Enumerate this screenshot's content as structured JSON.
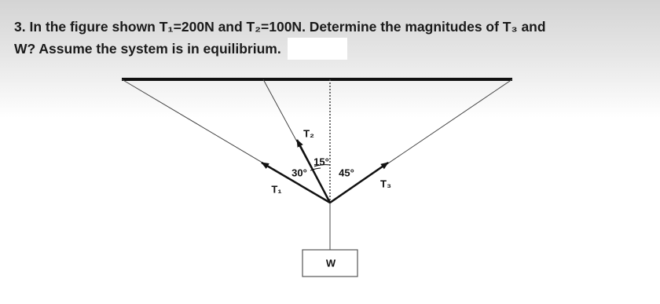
{
  "question": {
    "lines": [
      "3. In the figure shown T₁=200N and T₂=100N. Determine the magnitudes of T₃ and",
      "W? Assume the system is in equilibrium."
    ]
  },
  "figure": {
    "labels": {
      "t2": "T₂",
      "angle_15": "15°",
      "angle_30": "30°",
      "angle_45": "45°",
      "t3": "T₃",
      "t1": "T₁",
      "w": "W"
    }
  }
}
